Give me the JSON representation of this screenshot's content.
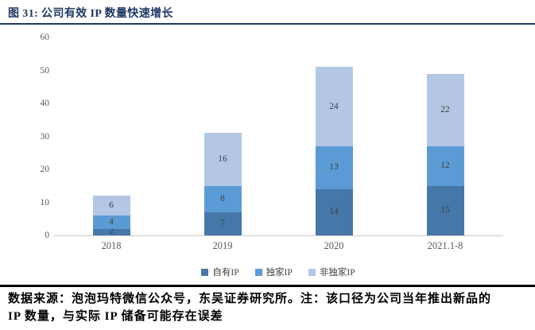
{
  "title": "图 31:  公司有效 IP 数量快速增长",
  "chart_data": {
    "type": "bar",
    "stacked": true,
    "categories": [
      "2018",
      "2019",
      "2020",
      "2021.1-8"
    ],
    "series": [
      {
        "name": "自有IP",
        "color": "#4577A8",
        "values": [
          2,
          7,
          14,
          15
        ]
      },
      {
        "name": "独家IP",
        "color": "#5B9BD5",
        "values": [
          4,
          8,
          13,
          12
        ]
      },
      {
        "name": "非独家IP",
        "color": "#B3C7E5",
        "values": [
          6,
          16,
          24,
          22
        ]
      }
    ],
    "totals": [
      12,
      31,
      51,
      49
    ],
    "ylim": [
      0,
      60
    ],
    "yticks": [
      0,
      10,
      20,
      30,
      40,
      50,
      60
    ],
    "grid": false,
    "legend_position": "bottom",
    "data_labels": true,
    "axis_line_color": "#C9C9C9",
    "tick_label_color": "#595959",
    "data_label_color": "#3F3F3F"
  },
  "footer": {
    "line1": "数据来源：泡泡玛特微信公众号，东吴证券研究所。注：该口径为公司当年推出新品的",
    "line2": "IP 数量，与实际 IP 储备可能存在误差"
  },
  "colors": {
    "title_text": "#1F3864",
    "title_rule": "#1F3864",
    "footer_rule": "#000000",
    "background": "#FFFFFF"
  }
}
